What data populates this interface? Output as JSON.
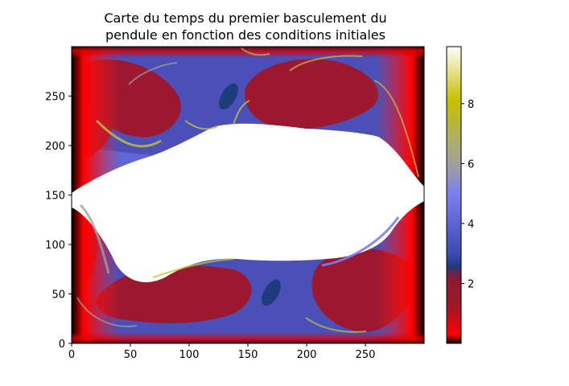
{
  "chart_data": {
    "type": "heatmap",
    "title_line1": "Carte du temps du premier basculement du",
    "title_line2": "pendule en fonction des conditions initiales",
    "xlabel": "",
    "ylabel": "",
    "xlim": [
      0,
      300
    ],
    "ylim": [
      0,
      300
    ],
    "x_ticks": [
      "0",
      "50",
      "100",
      "150",
      "200",
      "250"
    ],
    "y_ticks": [
      "0",
      "50",
      "100",
      "150",
      "200",
      "250"
    ],
    "colorbar": {
      "range": [
        0.0,
        9.9
      ],
      "ticks": [
        "2",
        "4",
        "6",
        "8"
      ],
      "colormap": [
        "#000000",
        "#ff0000",
        "#8b1a2a",
        "#1f3a7a",
        "#7a7ef0",
        "#b0b0b0",
        "#c8c000",
        "#ffffff"
      ]
    },
    "regions": {
      "center_white_value": 9.9,
      "background_value": 3.0,
      "lobe_value": 1.5,
      "edge_value": 0.5,
      "dark_blob_value": 2.6
    }
  }
}
